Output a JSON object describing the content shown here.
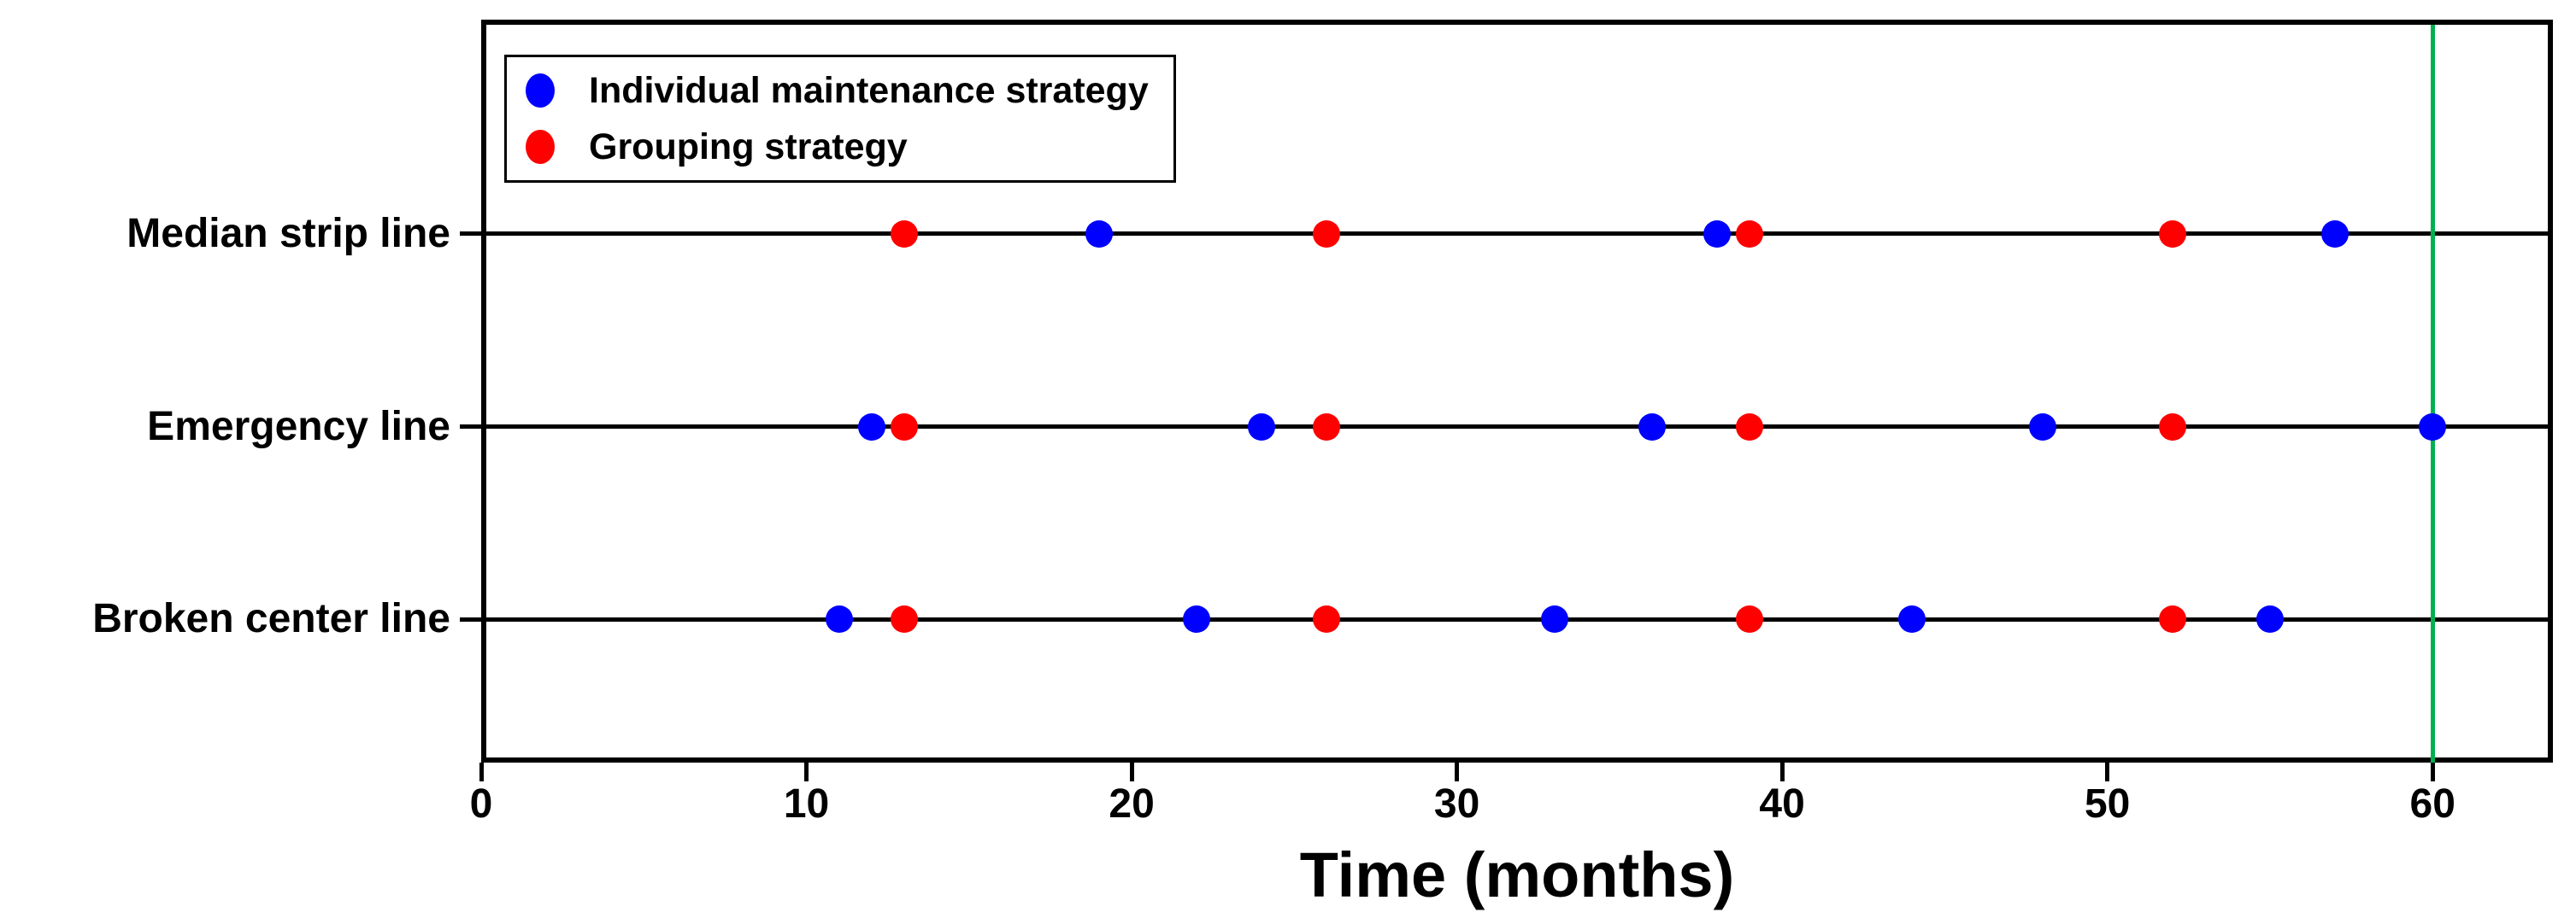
{
  "chart_data": {
    "type": "scatter",
    "title": "",
    "xlabel": "Time (months)",
    "xlim": [
      0,
      63.7
    ],
    "x_ticks": [
      0,
      10,
      20,
      30,
      40,
      50,
      60
    ],
    "grid": false,
    "categories": [
      "Median strip line",
      "Emergency line",
      "Broken center line"
    ],
    "series": [
      {
        "name": "Individual maintenance strategy",
        "color": "#0000FF",
        "values": [
          [
            19,
            38,
            57
          ],
          [
            12,
            24,
            36,
            48,
            60
          ],
          [
            11,
            22,
            33,
            44,
            55
          ]
        ]
      },
      {
        "name": "Grouping strategy",
        "color": "#FF0000",
        "values": [
          [
            13,
            26,
            39,
            52
          ],
          [
            13,
            26,
            39,
            52
          ],
          [
            13,
            26,
            39,
            52
          ]
        ]
      }
    ],
    "horizon_line": {
      "x": 60,
      "color": "#00B050"
    },
    "legend": {
      "position": "top-left"
    },
    "axis_color": "#000000"
  }
}
